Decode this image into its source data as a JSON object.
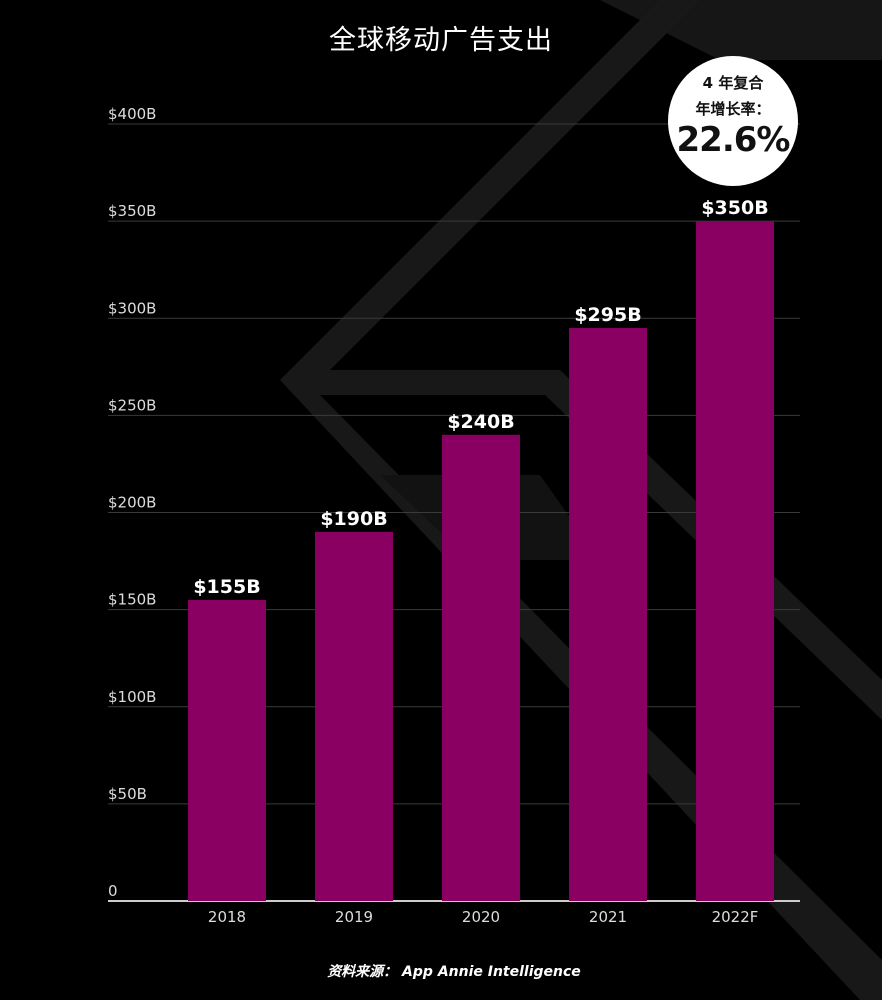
{
  "chart_data": {
    "type": "bar",
    "title": "全球移动广告支出",
    "categories": [
      "2018",
      "2019",
      "2020",
      "2021",
      "2022F"
    ],
    "values": [
      155,
      190,
      240,
      295,
      350
    ],
    "data_labels": [
      "$155B",
      "$190B",
      "$240B",
      "$295B",
      "$350B"
    ],
    "ylim": [
      0,
      400
    ],
    "yticks": [
      0,
      50,
      100,
      150,
      200,
      250,
      300,
      350,
      400
    ],
    "ytick_labels": [
      "0",
      "$50B",
      "$100B",
      "$150B",
      "$200B",
      "$250B",
      "$300B",
      "$350B",
      "$400B"
    ],
    "xlabel": "",
    "ylabel": "",
    "grid": true,
    "legend": "none",
    "colors": {
      "bar": "#8a0062",
      "background": "#000000",
      "text": "#ffffff",
      "gridline": "#3a3a3a",
      "axis": "#cccccc"
    },
    "annotation": {
      "line1": "4 年复合",
      "line2": "年增长率：",
      "value": "22.6%"
    },
    "source": "资料来源： App Annie Intelligence"
  }
}
